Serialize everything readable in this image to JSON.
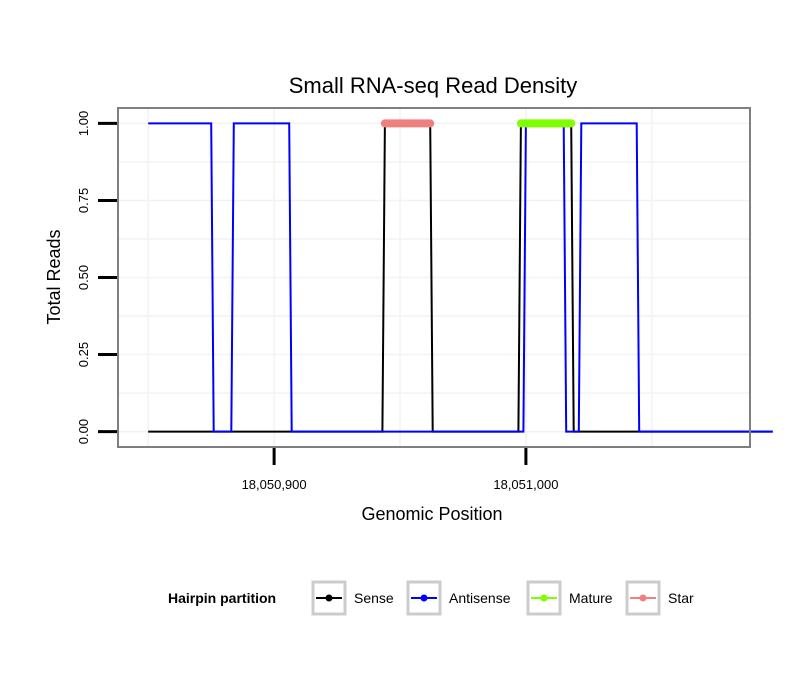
{
  "chart_data": {
    "type": "line",
    "title": "Small RNA-seq Read Density",
    "xlabel": "Genomic Position",
    "ylabel": "Total Reads",
    "xlim": [
      18050838,
      18051089
    ],
    "ylim": [
      -0.05,
      1.05
    ],
    "x_ticks": [
      {
        "value": 18050900,
        "label": "18,050,900"
      },
      {
        "value": 18051000,
        "label": "18,051,000"
      }
    ],
    "y_ticks": [
      {
        "value": 0,
        "label": "0.00"
      },
      {
        "value": 0.25,
        "label": "0.25"
      },
      {
        "value": 0.5,
        "label": "0.50"
      },
      {
        "value": 0.75,
        "label": "0.75"
      },
      {
        "value": 1,
        "label": "1.00"
      }
    ],
    "grid": true,
    "legend": {
      "title": "Hairpin partition",
      "position": "bottom",
      "entries": [
        {
          "name": "Sense",
          "color": "#000000"
        },
        {
          "name": "Antisense",
          "color": "#0000FF"
        },
        {
          "name": "Mature",
          "color": "#7FFF00"
        },
        {
          "name": "Star",
          "color": "#F08080"
        }
      ]
    },
    "series": [
      {
        "name": "Sense",
        "color": "#000000",
        "x": [
          18050850,
          18050943,
          18050944,
          18050962,
          18050963,
          18050997,
          18050998,
          18051018,
          18051019,
          18051098
        ],
        "values": [
          0,
          0,
          1,
          1,
          0,
          0,
          1,
          1,
          0,
          0
        ]
      },
      {
        "name": "Antisense",
        "color": "#0000FF",
        "x": [
          18050850,
          18050875,
          18050876,
          18050883,
          18050884,
          18050906,
          18050907,
          18050999,
          18051000,
          18051015,
          18051016,
          18051021,
          18051022,
          18051044,
          18051045,
          18051098
        ],
        "values": [
          1,
          1,
          0,
          0,
          1,
          1,
          0,
          0,
          1,
          1,
          0,
          0,
          1,
          1,
          0,
          0
        ]
      },
      {
        "name": "Mature",
        "color": "#7FFF00",
        "x": [
          18050998,
          18051018
        ],
        "values": [
          1,
          1
        ]
      },
      {
        "name": "Star",
        "color": "#F08080",
        "x": [
          18050944,
          18050962
        ],
        "values": [
          1,
          1
        ]
      }
    ]
  }
}
